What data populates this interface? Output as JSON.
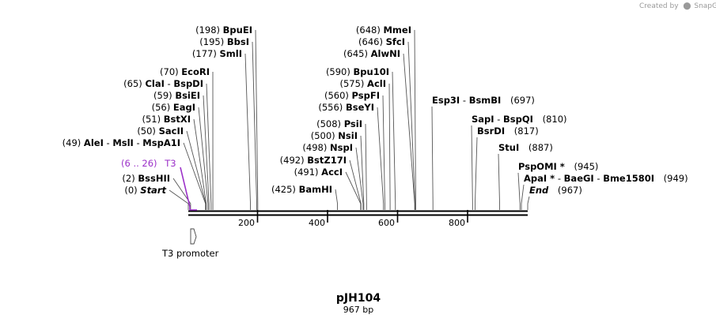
{
  "credit": {
    "prefix": "Created by",
    "brand": "SnapGene"
  },
  "title": "pJH104",
  "subtitle": "967 bp",
  "sequence_length": 967,
  "axis_ticks": [
    "200",
    "400",
    "600",
    "800"
  ],
  "feature": {
    "label": "T3 promoter"
  },
  "primer": {
    "range": "(6 .. 26)",
    "name": "T3",
    "color": "#9b30c8"
  },
  "sites_left": [
    {
      "pos": "(198)",
      "names": [
        "BpuEI"
      ],
      "cut": 198
    },
    {
      "pos": "(195)",
      "names": [
        "BbsI"
      ],
      "cut": 195
    },
    {
      "pos": "(177)",
      "names": [
        "SmlI"
      ],
      "cut": 177
    },
    {
      "pos": "(70)",
      "names": [
        "EcoRI"
      ],
      "cut": 70
    },
    {
      "pos": "(65)",
      "names": [
        "ClaI",
        "BspDI"
      ],
      "cut": 65
    },
    {
      "pos": "(59)",
      "names": [
        "BsiEI"
      ],
      "cut": 59
    },
    {
      "pos": "(56)",
      "names": [
        "EagI"
      ],
      "cut": 56
    },
    {
      "pos": "(51)",
      "names": [
        "BstXI"
      ],
      "cut": 51
    },
    {
      "pos": "(50)",
      "names": [
        "SacII"
      ],
      "cut": 50
    },
    {
      "pos": "(49)",
      "names": [
        "AleI",
        "MslI",
        "MspA1I"
      ],
      "cut": 49
    },
    {
      "pos": "(2)",
      "names": [
        "BssHII"
      ],
      "cut": 2
    },
    {
      "pos": "(0)",
      "names": [
        "Start"
      ],
      "cut": 0,
      "italic": true
    }
  ],
  "sites_middle": [
    {
      "pos": "(648)",
      "names": [
        "MmeI"
      ],
      "cut": 648
    },
    {
      "pos": "(646)",
      "names": [
        "SfcI"
      ],
      "cut": 646
    },
    {
      "pos": "(645)",
      "names": [
        "AlwNI"
      ],
      "cut": 645
    },
    {
      "pos": "(590)",
      "names": [
        "Bpu10I"
      ],
      "cut": 590
    },
    {
      "pos": "(575)",
      "names": [
        "AclI"
      ],
      "cut": 575
    },
    {
      "pos": "(560)",
      "names": [
        "PspFI"
      ],
      "cut": 560
    },
    {
      "pos": "(556)",
      "names": [
        "BseYI"
      ],
      "cut": 556
    },
    {
      "pos": "(508)",
      "names": [
        "PsiI"
      ],
      "cut": 508
    },
    {
      "pos": "(500)",
      "names": [
        "NsiI"
      ],
      "cut": 500
    },
    {
      "pos": "(498)",
      "names": [
        "NspI"
      ],
      "cut": 498
    },
    {
      "pos": "(492)",
      "names": [
        "BstZ17I"
      ],
      "cut": 492
    },
    {
      "pos": "(491)",
      "names": [
        "AccI"
      ],
      "cut": 491
    },
    {
      "pos": "(425)",
      "names": [
        "BamHI"
      ],
      "cut": 425
    }
  ],
  "sites_right": [
    {
      "pos": "(697)",
      "names": [
        "Esp3I",
        "BsmBI"
      ],
      "cut": 697
    },
    {
      "pos": "(810)",
      "names": [
        "SapI",
        "BspQI"
      ],
      "cut": 810
    },
    {
      "pos": "(817)",
      "names": [
        "BsrDI"
      ],
      "cut": 817
    },
    {
      "pos": "(887)",
      "names": [
        "StuI"
      ],
      "cut": 887
    },
    {
      "pos": "(945)",
      "names": [
        "PspOMI *"
      ],
      "cut": 945
    },
    {
      "pos": "(949)",
      "names": [
        "ApaI *",
        "BaeGI",
        "Bme1580I"
      ],
      "cut": 949
    },
    {
      "pos": "(967)",
      "names": [
        "End"
      ],
      "cut": 967,
      "italic": true
    }
  ]
}
